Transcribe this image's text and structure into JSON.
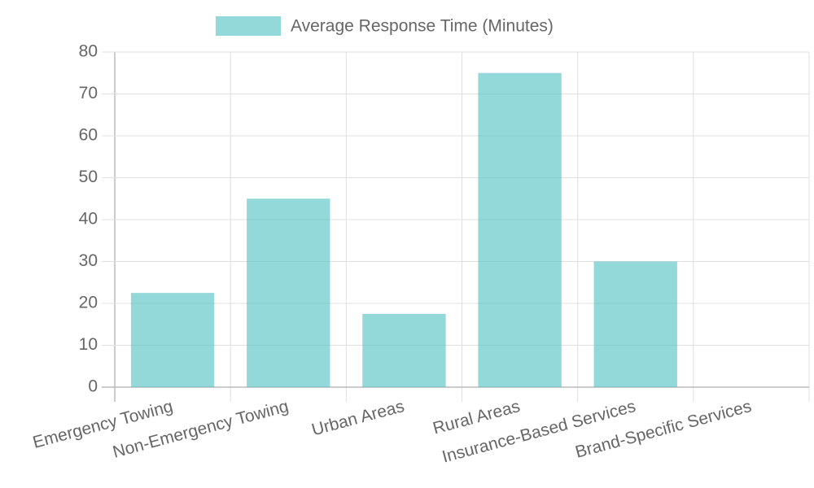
{
  "chart_data": {
    "type": "bar",
    "categories": [
      "Emergency Towing",
      "Non-Emergency Towing",
      "Urban Areas",
      "Rural Areas",
      "Insurance-Based Services",
      "Brand-Specific Services"
    ],
    "series": [
      {
        "name": "Average Response Time (Minutes)",
        "color": "rgba(75,192,192,0.6)",
        "values": [
          22.5,
          45,
          17.5,
          75,
          30,
          null
        ]
      }
    ],
    "ylim": [
      0,
      80
    ],
    "yticks": [
      0,
      10,
      20,
      30,
      40,
      50,
      60,
      70,
      80
    ],
    "grid": true
  }
}
